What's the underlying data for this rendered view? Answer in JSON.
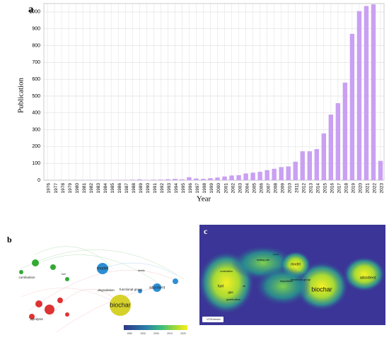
{
  "chart_data": {
    "type": "bar",
    "title": "a",
    "x_label": "Year",
    "y_label": "Publication",
    "categories": [
      "1976",
      "1977",
      "1978",
      "1979",
      "1980",
      "1981",
      "1982",
      "1983",
      "1984",
      "1985",
      "1986",
      "1987",
      "1988",
      "1989",
      "1990",
      "1991",
      "1992",
      "1993",
      "1994",
      "1995",
      "1996",
      "1997",
      "1998",
      "1999",
      "2000",
      "2001",
      "2002",
      "2003",
      "2004",
      "2005",
      "2006",
      "2007",
      "2008",
      "2009",
      "2010",
      "2011",
      "2012",
      "2013",
      "2014",
      "2015",
      "2016",
      "2017",
      "2018",
      "2019",
      "2020",
      "2021",
      "2022",
      "2023"
    ],
    "values": [
      1,
      0,
      1,
      0,
      1,
      1,
      1,
      1,
      1,
      1,
      2,
      2,
      3,
      5,
      2,
      3,
      4,
      6,
      8,
      5,
      18,
      10,
      8,
      12,
      16,
      22,
      28,
      30,
      40,
      45,
      50,
      60,
      68,
      78,
      82,
      110,
      172,
      172,
      185,
      278,
      390,
      458,
      580,
      870,
      1005,
      1035,
      1045,
      115
    ],
    "color": "#c9a0f2",
    "ylim": [
      0,
      1050
    ],
    "yticks": [
      0,
      100,
      200,
      300,
      400,
      500,
      600,
      700,
      800,
      900,
      1000
    ],
    "grid": true
  },
  "panels": {
    "b": {
      "label": "b",
      "terms": [
        "biochar",
        "model",
        "adsorbent",
        "degradation",
        "functional group",
        "combustion",
        "pyrolysis",
        "fuel",
        "kinetic"
      ],
      "colorbar_ticks": [
        "1980",
        "1990",
        "2000",
        "2010",
        "2020"
      ]
    },
    "c": {
      "label": "c",
      "terms": [
        "biochar",
        "model",
        "adsorbent",
        "functional group",
        "degradation",
        "combustion",
        "fuel",
        "gas",
        "oil",
        "gasification",
        "heating rate",
        "kinetic"
      ],
      "logo": "VOSviewer"
    }
  }
}
